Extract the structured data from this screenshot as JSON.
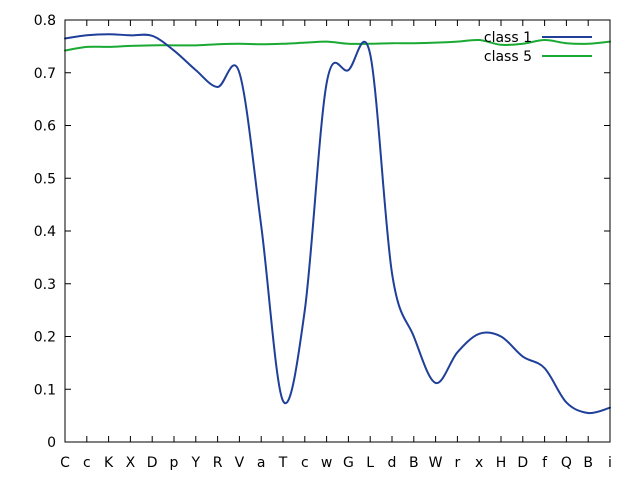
{
  "chart_data": {
    "type": "line",
    "title": "",
    "xlabel": "",
    "ylabel": "",
    "categories": [
      "C",
      "c",
      "K",
      "X",
      "D",
      "p",
      "Y",
      "R",
      "V",
      "a",
      "T",
      "c",
      "w",
      "G",
      "L",
      "d",
      "B",
      "W",
      "r",
      "x",
      "H",
      "D",
      "f",
      "Q",
      "B",
      "i"
    ],
    "ylim": [
      0,
      0.8
    ],
    "yticks": [
      "0",
      "0.1",
      "0.2",
      "0.3",
      "0.4",
      "0.5",
      "0.6",
      "0.7",
      "0.8"
    ],
    "grid": false,
    "legend_position": "top-right",
    "series": [
      {
        "name": "class 1",
        "color": "#1f3f99",
        "values": [
          0.765,
          0.771,
          0.773,
          0.771,
          0.77,
          0.742,
          0.705,
          0.673,
          0.7,
          0.41,
          0.078,
          0.25,
          0.68,
          0.705,
          0.735,
          0.32,
          0.2,
          0.112,
          0.17,
          0.205,
          0.2,
          0.162,
          0.14,
          0.075,
          0.055,
          0.065
        ]
      },
      {
        "name": "class 5",
        "color": "#1aaa33",
        "values": [
          0.742,
          0.749,
          0.749,
          0.751,
          0.752,
          0.752,
          0.752,
          0.754,
          0.755,
          0.754,
          0.755,
          0.757,
          0.759,
          0.755,
          0.755,
          0.756,
          0.756,
          0.757,
          0.759,
          0.762,
          0.753,
          0.755,
          0.762,
          0.756,
          0.755,
          0.759
        ]
      }
    ]
  }
}
